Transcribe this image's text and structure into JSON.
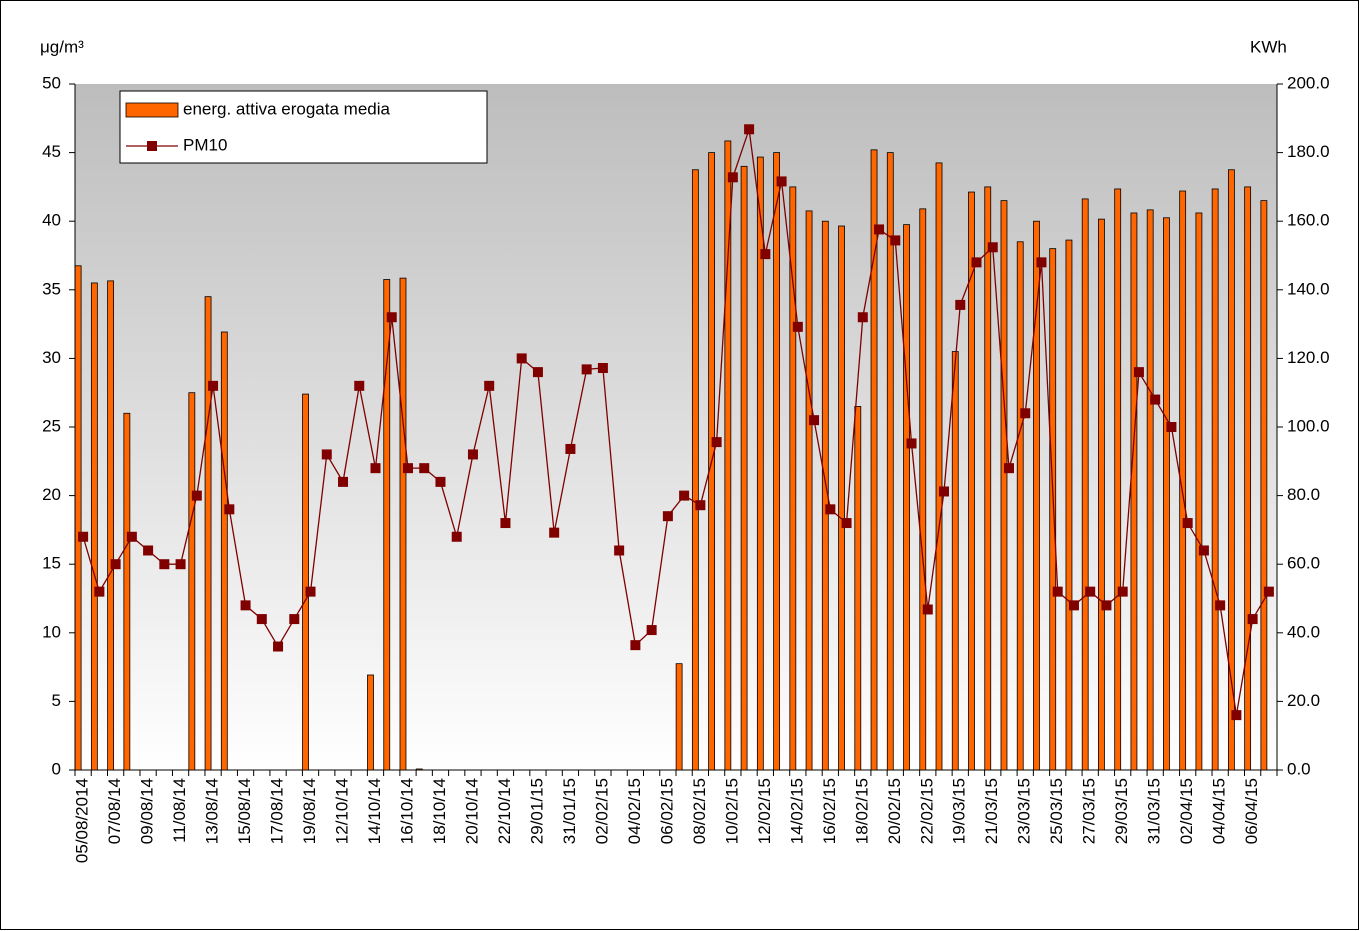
{
  "chart_data": {
    "type": "bar",
    "y_label": "μg/m³",
    "y2_label": "KWh",
    "categories": [
      "05/08/2014",
      null,
      "07/08/14",
      null,
      "09/08/14",
      null,
      "11/08/14",
      null,
      "13/08/14",
      null,
      "15/08/14",
      null,
      "17/08/14",
      null,
      "19/08/14",
      null,
      "12/10/14",
      null,
      "14/10/14",
      null,
      "16/10/14",
      null,
      "18/10/14",
      null,
      "20/10/14",
      null,
      "22/10/14",
      null,
      "29/01/15",
      null,
      "31/01/15",
      null,
      "02/02/15",
      null,
      "04/02/15",
      null,
      "06/02/15",
      null,
      "08/02/15",
      null,
      "10/02/15",
      null,
      "12/02/15",
      null,
      "14/02/15",
      null,
      "16/02/15",
      null,
      "18/02/15",
      null,
      "20/02/15",
      null,
      "22/02/15",
      null,
      "19/03/15",
      null,
      "21/03/15",
      null,
      "23/03/15",
      null,
      "25/03/15",
      null,
      "27/03/15",
      null,
      "29/03/15",
      null,
      "31/03/15",
      null,
      "02/04/15",
      null,
      "04/04/15",
      null,
      "06/04/15",
      null
    ],
    "series": [
      {
        "name": "energ. attiva  erogata media",
        "type": "bar",
        "axis": "y2",
        "color": "#ff6600",
        "values": [
          147,
          142,
          142.6,
          104,
          0,
          0,
          0,
          110,
          138,
          127.7,
          0,
          0,
          0,
          0,
          109.6,
          0,
          0,
          0,
          27.7,
          143,
          143.4,
          0.3,
          0,
          0,
          0,
          0,
          0,
          0,
          0,
          0,
          0,
          0,
          0,
          0,
          0,
          0,
          0,
          31,
          175,
          180,
          183.4,
          176,
          178.7,
          180,
          170,
          163,
          160,
          158.6,
          106,
          180.8,
          180,
          159,
          163.6,
          177,
          122,
          168.5,
          170,
          166,
          154,
          160,
          152,
          154.5,
          166.5,
          160.6,
          169.4,
          162.4,
          163.3,
          161,
          168.8,
          162.4,
          169.4,
          175,
          170,
          166
        ]
      },
      {
        "name": "PM10",
        "type": "line",
        "axis": "y",
        "color": "#800000",
        "values": [
          17,
          13,
          15,
          17,
          16,
          15,
          15,
          20,
          28,
          19,
          12,
          11,
          9,
          11,
          13,
          23,
          21,
          28,
          22,
          33,
          22,
          22,
          21,
          17,
          23,
          28,
          18,
          30,
          29,
          17.3,
          23.4,
          29.2,
          29.3,
          16,
          9.1,
          10.2,
          18.5,
          20,
          19.3,
          23.9,
          43.2,
          46.7,
          37.6,
          42.9,
          32.3,
          25.5,
          19,
          18,
          33,
          39.4,
          38.6,
          23.8,
          11.7,
          20.3,
          33.9,
          37,
          38.1,
          22,
          26,
          37,
          13,
          12,
          13,
          12,
          13,
          29,
          27,
          25,
          18,
          16,
          12,
          4,
          11,
          13
        ]
      }
    ],
    "ylim": [
      0,
      50
    ],
    "yticks": [
      0,
      5,
      10,
      15,
      20,
      25,
      30,
      35,
      40,
      45,
      50
    ],
    "y2lim": [
      0,
      200
    ],
    "y2ticks": [
      {
        "value": 0,
        "label": "0.0"
      },
      {
        "value": 20,
        "label": "20.0"
      },
      {
        "value": 40,
        "label": "40.0"
      },
      {
        "value": 60,
        "label": "60.0"
      },
      {
        "value": 80,
        "label": "80.0"
      },
      {
        "value": 100,
        "label": "100.0"
      },
      {
        "value": 120,
        "label": "120.0"
      },
      {
        "value": 140,
        "label": "140.0"
      },
      {
        "value": 160,
        "label": "160.0"
      },
      {
        "value": 180,
        "label": "180.0"
      },
      {
        "value": 200,
        "label": "200.0"
      }
    ]
  }
}
